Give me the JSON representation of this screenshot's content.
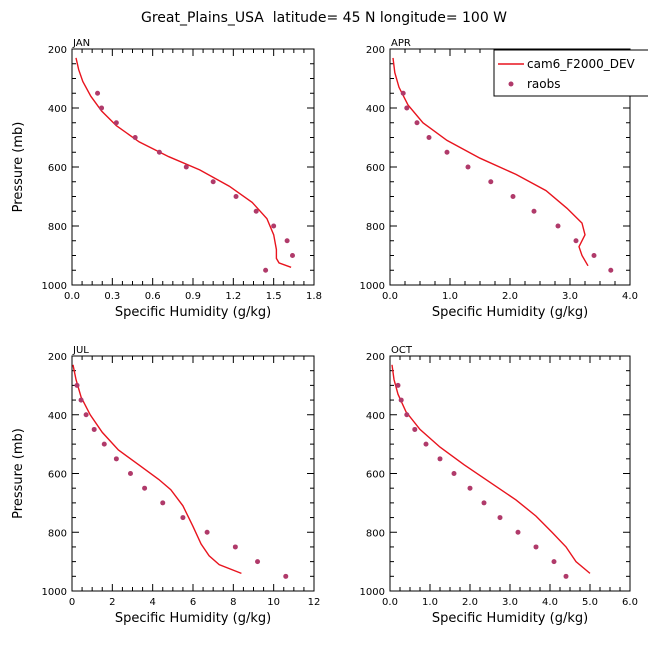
{
  "title": "Great_Plains_USA  latitude= 45 N longitude= 100 W",
  "colors": {
    "model": "#e8141e",
    "obs": "#b03a6a",
    "axis": "#000000"
  },
  "legend": {
    "model_label": "cam6_F2000_DEV",
    "obs_label": "raobs"
  },
  "chart_data": [
    {
      "type": "line",
      "panel": "JAN",
      "xlabel": "Specific Humidity (g/kg)",
      "ylabel": "Pressure (mb)",
      "xlim": [
        0,
        1.8
      ],
      "xticks": [
        0,
        0.3,
        0.6,
        0.9,
        1.2,
        1.5,
        1.8
      ],
      "xticklabels": [
        "0.0",
        "0.3",
        "0.6",
        "0.9",
        "1.2",
        "1.5",
        "1.8"
      ],
      "ylim": [
        200,
        1000
      ],
      "yticks": [
        200,
        400,
        600,
        800,
        1000
      ],
      "yticklabels": [
        "200",
        "400",
        "600",
        "800",
        "1000"
      ],
      "series": [
        {
          "name": "cam6_F2000_DEV",
          "style": "line",
          "x": [
            0.03,
            0.05,
            0.08,
            0.14,
            0.22,
            0.33,
            0.5,
            0.72,
            0.95,
            1.17,
            1.34,
            1.45,
            1.5,
            1.52,
            1.52,
            1.54,
            1.63
          ],
          "y": [
            230,
            270,
            310,
            360,
            410,
            460,
            515,
            565,
            610,
            665,
            720,
            775,
            830,
            880,
            910,
            925,
            940
          ]
        },
        {
          "name": "raobs",
          "style": "scatter",
          "x": [
            0.19,
            0.22,
            0.33,
            0.47,
            0.65,
            0.85,
            1.05,
            1.22,
            1.37,
            1.5,
            1.6,
            1.64,
            1.44
          ],
          "y": [
            350,
            400,
            450,
            500,
            550,
            600,
            650,
            700,
            750,
            800,
            850,
            900,
            950
          ]
        }
      ]
    },
    {
      "type": "line",
      "panel": "APR",
      "xlabel": "Specific Humidity (g/kg)",
      "ylabel": "",
      "xlim": [
        0,
        4.0
      ],
      "xticks": [
        0,
        1,
        2,
        3,
        4
      ],
      "xticklabels": [
        "0.0",
        "1.0",
        "2.0",
        "3.0",
        "4.0"
      ],
      "ylim": [
        200,
        1000
      ],
      "yticks": [
        200,
        400,
        600,
        800,
        1000
      ],
      "yticklabels": [
        "200",
        "400",
        "600",
        "800",
        "1000"
      ],
      "series": [
        {
          "name": "cam6_F2000_DEV",
          "style": "line",
          "x": [
            0.05,
            0.08,
            0.15,
            0.3,
            0.55,
            0.95,
            1.5,
            2.1,
            2.6,
            2.95,
            3.2,
            3.25,
            3.15,
            3.2,
            3.3
          ],
          "y": [
            230,
            280,
            330,
            390,
            450,
            510,
            570,
            625,
            680,
            740,
            790,
            830,
            870,
            900,
            935
          ]
        },
        {
          "name": "raobs",
          "style": "scatter",
          "x": [
            0.22,
            0.28,
            0.45,
            0.65,
            0.95,
            1.3,
            1.68,
            2.05,
            2.4,
            2.8,
            3.1,
            3.4,
            3.68
          ],
          "y": [
            350,
            400,
            450,
            500,
            550,
            600,
            650,
            700,
            750,
            800,
            850,
            900,
            950
          ]
        }
      ]
    },
    {
      "type": "line",
      "panel": "JUL",
      "xlabel": "Specific Humidity (g/kg)",
      "ylabel": "Pressure (mb)",
      "xlim": [
        0,
        12
      ],
      "xticks": [
        0,
        2,
        4,
        6,
        8,
        10,
        12
      ],
      "xticklabels": [
        "0",
        "2",
        "4",
        "6",
        "8",
        "10",
        "12"
      ],
      "ylim": [
        200,
        1000
      ],
      "yticks": [
        200,
        400,
        600,
        800,
        1000
      ],
      "yticklabels": [
        "200",
        "400",
        "600",
        "800",
        "1000"
      ],
      "series": [
        {
          "name": "cam6_F2000_DEV",
          "style": "line",
          "x": [
            0.05,
            0.2,
            0.45,
            0.9,
            1.5,
            2.3,
            3.3,
            4.3,
            4.9,
            5.5,
            6.0,
            6.4,
            6.8,
            7.3,
            8.4
          ],
          "y": [
            230,
            280,
            340,
            400,
            460,
            520,
            570,
            620,
            655,
            710,
            780,
            840,
            880,
            910,
            940
          ]
        },
        {
          "name": "raobs",
          "style": "scatter",
          "x": [
            0.25,
            0.45,
            0.7,
            1.1,
            1.6,
            2.2,
            2.9,
            3.6,
            4.5,
            5.5,
            6.7,
            8.1,
            9.2,
            10.6
          ],
          "y": [
            300,
            350,
            400,
            450,
            500,
            550,
            600,
            650,
            700,
            750,
            800,
            850,
            900,
            950
          ]
        }
      ]
    },
    {
      "type": "line",
      "panel": "OCT",
      "xlabel": "Specific Humidity (g/kg)",
      "ylabel": "",
      "xlim": [
        0,
        6.0
      ],
      "xticks": [
        0,
        1,
        2,
        3,
        4,
        5,
        6
      ],
      "xticklabels": [
        "0.0",
        "1.0",
        "2.0",
        "3.0",
        "4.0",
        "5.0",
        "6.0"
      ],
      "ylim": [
        200,
        1000
      ],
      "yticks": [
        200,
        400,
        600,
        800,
        1000
      ],
      "yticklabels": [
        "200",
        "400",
        "600",
        "800",
        "1000"
      ],
      "series": [
        {
          "name": "cam6_F2000_DEV",
          "style": "line",
          "x": [
            0.05,
            0.1,
            0.2,
            0.4,
            0.75,
            1.25,
            1.85,
            2.5,
            3.15,
            3.65,
            4.05,
            4.4,
            4.65,
            5.0
          ],
          "y": [
            230,
            280,
            330,
            390,
            450,
            510,
            570,
            630,
            690,
            745,
            800,
            850,
            900,
            940
          ]
        },
        {
          "name": "raobs",
          "style": "scatter",
          "x": [
            0.2,
            0.28,
            0.42,
            0.62,
            0.9,
            1.25,
            1.6,
            2.0,
            2.35,
            2.75,
            3.2,
            3.65,
            4.1,
            4.4
          ],
          "y": [
            300,
            350,
            400,
            450,
            500,
            550,
            600,
            650,
            700,
            750,
            800,
            850,
            900,
            950
          ]
        }
      ]
    }
  ]
}
